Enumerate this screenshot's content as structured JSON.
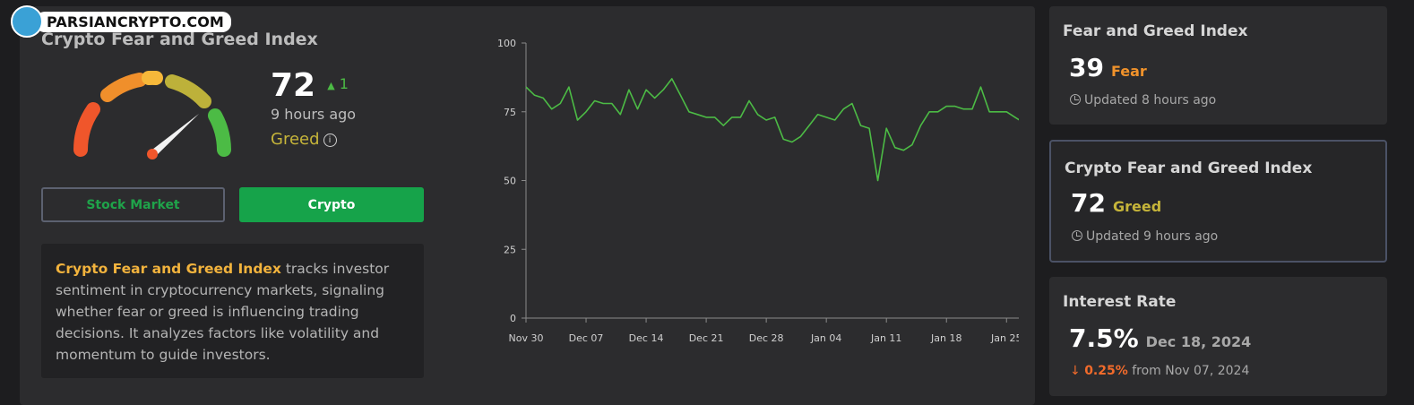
{
  "watermark": {
    "text": "PARSIANCRYPTO.COM"
  },
  "main": {
    "title": "Crypto Fear and Greed Index",
    "value": "72",
    "delta": "1",
    "updated": "9 hours ago",
    "status": "Greed",
    "status_color": "#c6b53a",
    "gauge_needle_value": 72,
    "buttons": {
      "stock": "Stock Market",
      "crypto": "Crypto"
    },
    "description": {
      "highlight": "Crypto Fear and Greed Index",
      "text": " tracks investor sentiment in cryptocurrency markets, signaling whether fear or greed is influencing trading decisions. It analyzes factors like volatility and momentum to guide investors."
    }
  },
  "chart_data": {
    "type": "line",
    "y_ticks": [
      0,
      25,
      50,
      75,
      100
    ],
    "ylim": [
      0,
      100
    ],
    "x_tick_labels": [
      "Nov 30",
      "Dec 07",
      "Dec 14",
      "Dec 21",
      "Dec 28",
      "Jan 04",
      "Jan 11",
      "Jan 18",
      "Jan 25"
    ],
    "line_color": "#4cbb45",
    "series": [
      {
        "values": [
          84,
          81,
          80,
          76,
          78,
          84,
          72,
          75,
          79,
          78,
          78,
          74,
          83,
          76,
          83,
          80,
          83,
          87,
          81,
          75,
          74,
          73,
          73,
          70,
          73,
          73,
          79,
          74,
          72,
          73,
          65,
          64,
          66,
          70,
          74,
          73,
          72,
          76,
          78,
          70,
          69,
          50,
          69,
          62,
          61,
          63,
          70,
          75,
          75,
          77,
          77,
          76,
          76,
          84,
          75,
          75,
          75,
          73,
          71,
          72
        ]
      }
    ]
  },
  "side_cards": [
    {
      "title": "Fear and Greed Index",
      "value": "39",
      "label": "Fear",
      "label_color": "#f0922b",
      "sub": "Updated 8 hours ago"
    },
    {
      "title": "Crypto Fear and Greed Index",
      "value": "72",
      "label": "Greed",
      "label_color": "#c6b53a",
      "sub": "Updated 9 hours ago"
    },
    {
      "title": "Interest Rate",
      "value": "7.5%",
      "label": "Dec 18, 2024",
      "label_color": "#a8a8a8",
      "change": "0.25%",
      "sub_rest": " from Nov 07, 2024"
    }
  ]
}
